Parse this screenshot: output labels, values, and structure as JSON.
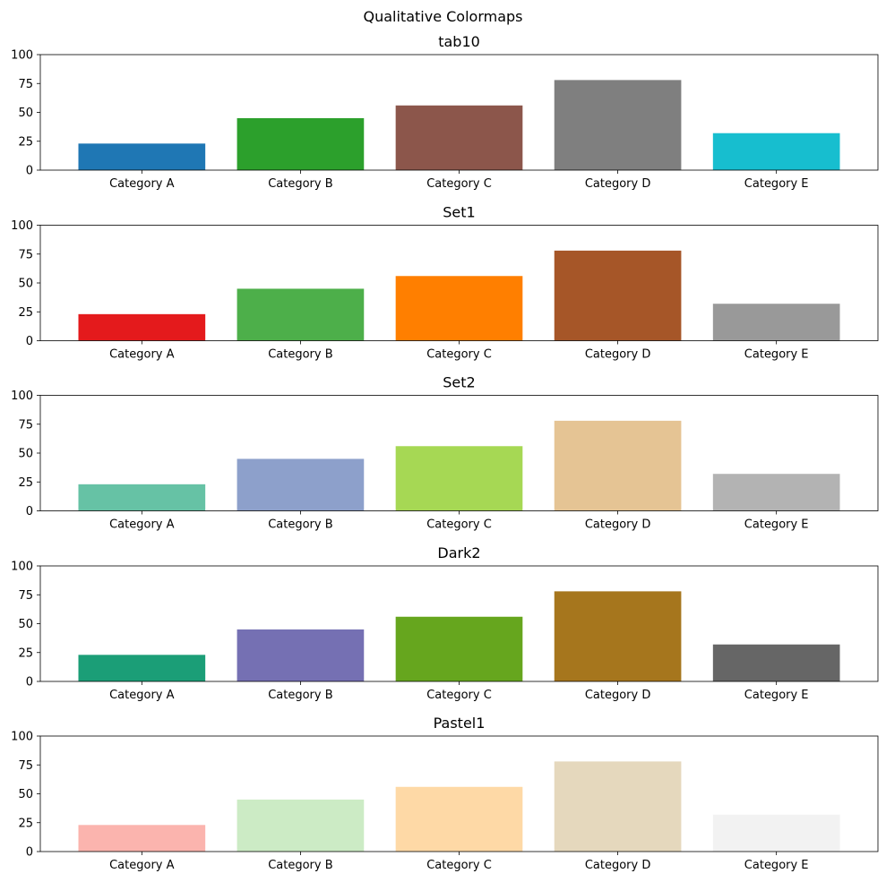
{
  "figure_title": "Qualitative Colormaps",
  "chart_data": [
    {
      "type": "bar",
      "title": "tab10",
      "categories": [
        "Category A",
        "Category B",
        "Category C",
        "Category D",
        "Category E"
      ],
      "values": [
        23,
        45,
        56,
        78,
        32
      ],
      "colors": [
        "#1f77b4",
        "#2ca02c",
        "#8c564b",
        "#7f7f7f",
        "#17becf"
      ],
      "ylim": [
        0,
        100
      ],
      "yticks": [
        0,
        25,
        50,
        75,
        100
      ],
      "grid": false,
      "xlabel": "",
      "ylabel": ""
    },
    {
      "type": "bar",
      "title": "Set1",
      "categories": [
        "Category A",
        "Category B",
        "Category C",
        "Category D",
        "Category E"
      ],
      "values": [
        23,
        45,
        56,
        78,
        32
      ],
      "colors": [
        "#e41a1c",
        "#4daf4a",
        "#ff7f00",
        "#a65628",
        "#999999"
      ],
      "ylim": [
        0,
        100
      ],
      "yticks": [
        0,
        25,
        50,
        75,
        100
      ],
      "grid": false,
      "xlabel": "",
      "ylabel": ""
    },
    {
      "type": "bar",
      "title": "Set2",
      "categories": [
        "Category A",
        "Category B",
        "Category C",
        "Category D",
        "Category E"
      ],
      "values": [
        23,
        45,
        56,
        78,
        32
      ],
      "colors": [
        "#66c2a5",
        "#8da0cb",
        "#a6d854",
        "#e5c494",
        "#b3b3b3"
      ],
      "ylim": [
        0,
        100
      ],
      "yticks": [
        0,
        25,
        50,
        75,
        100
      ],
      "grid": false,
      "xlabel": "",
      "ylabel": ""
    },
    {
      "type": "bar",
      "title": "Dark2",
      "categories": [
        "Category A",
        "Category B",
        "Category C",
        "Category D",
        "Category E"
      ],
      "values": [
        23,
        45,
        56,
        78,
        32
      ],
      "colors": [
        "#1b9e77",
        "#7570b3",
        "#66a61e",
        "#a6761d",
        "#666666"
      ],
      "ylim": [
        0,
        100
      ],
      "yticks": [
        0,
        25,
        50,
        75,
        100
      ],
      "grid": false,
      "xlabel": "",
      "ylabel": ""
    },
    {
      "type": "bar",
      "title": "Pastel1",
      "categories": [
        "Category A",
        "Category B",
        "Category C",
        "Category D",
        "Category E"
      ],
      "values": [
        23,
        45,
        56,
        78,
        32
      ],
      "colors": [
        "#fbb4ae",
        "#ccebc5",
        "#fed9a6",
        "#e5d8bd",
        "#f2f2f2"
      ],
      "ylim": [
        0,
        100
      ],
      "yticks": [
        0,
        25,
        50,
        75,
        100
      ],
      "grid": false,
      "xlabel": "",
      "ylabel": ""
    }
  ]
}
